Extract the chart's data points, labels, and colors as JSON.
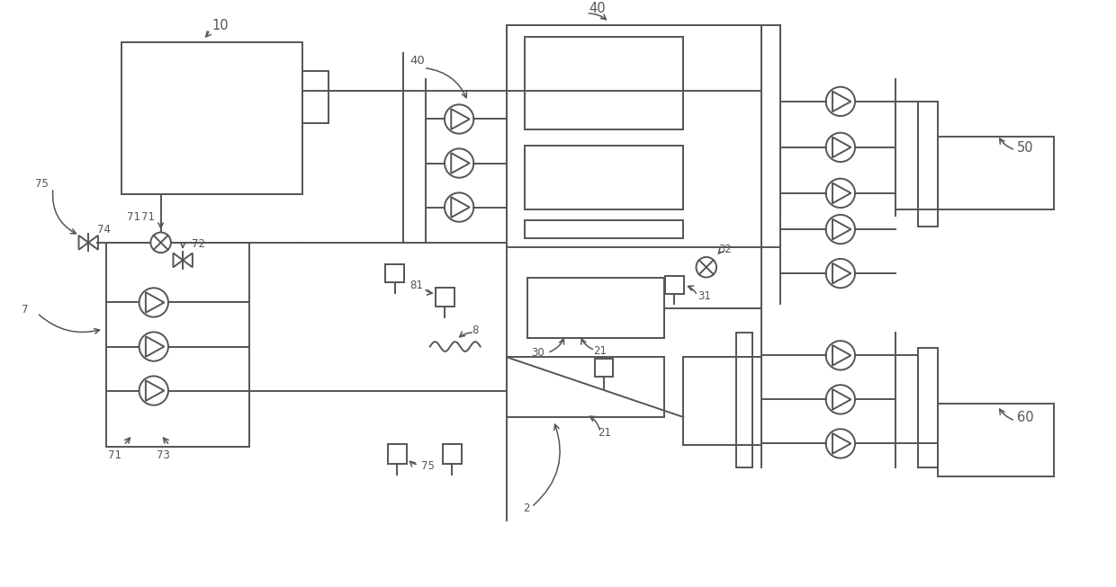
{
  "bg_color": "#ffffff",
  "lc": "#555555",
  "lw": 1.4,
  "fig_w": 12.4,
  "fig_h": 6.53
}
